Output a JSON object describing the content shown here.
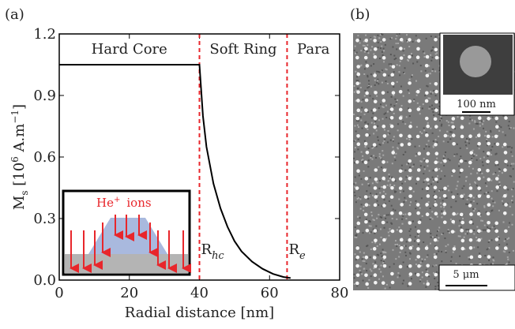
{
  "chart_data": {
    "type": "line",
    "panel_labels": [
      "(a)",
      "(b)"
    ],
    "xlabel": "Radial distance [nm]",
    "ylabel": [
      {
        "text": "M",
        "kind": "base"
      },
      {
        "text": "s",
        "kind": "sub"
      },
      {
        "text": " [10",
        "kind": "base"
      },
      {
        "text": "6",
        "kind": "sup"
      },
      {
        "text": " A.m",
        "kind": "base"
      },
      {
        "text": "−1",
        "kind": "sup"
      },
      {
        "text": "]",
        "kind": "base"
      }
    ],
    "xlim": [
      0,
      80
    ],
    "xticks": [
      0,
      20,
      40,
      60,
      80
    ],
    "ylim": [
      0,
      1.2
    ],
    "yticks": [
      {
        "value": 0,
        "label": "0.0"
      },
      0.3,
      0.6,
      0.9,
      1.2
    ],
    "series": [
      {
        "color": "#000000",
        "x": [
          0,
          40,
          41,
          42,
          44,
          46,
          48,
          50,
          52,
          55,
          58,
          61,
          64,
          66
        ],
        "y": [
          1.05,
          1.05,
          0.8,
          0.65,
          0.47,
          0.35,
          0.26,
          0.19,
          0.14,
          0.09,
          0.055,
          0.03,
          0.015,
          0.01
        ]
      }
    ],
    "vlines": {
      "color": "#e8262b",
      "x": [
        40,
        65
      ]
    },
    "regions": [
      "Hard Core",
      "Soft Ring",
      "Para"
    ],
    "vline_labels": [
      {
        "text": "R",
        "sub": "hc"
      },
      {
        "text": "R",
        "sub": "e"
      }
    ],
    "inset_label": {
      "text": "He",
      "sup": "+",
      "rest": "ions"
    },
    "scale_bars": [
      "100 nm",
      "5 μm"
    ]
  }
}
